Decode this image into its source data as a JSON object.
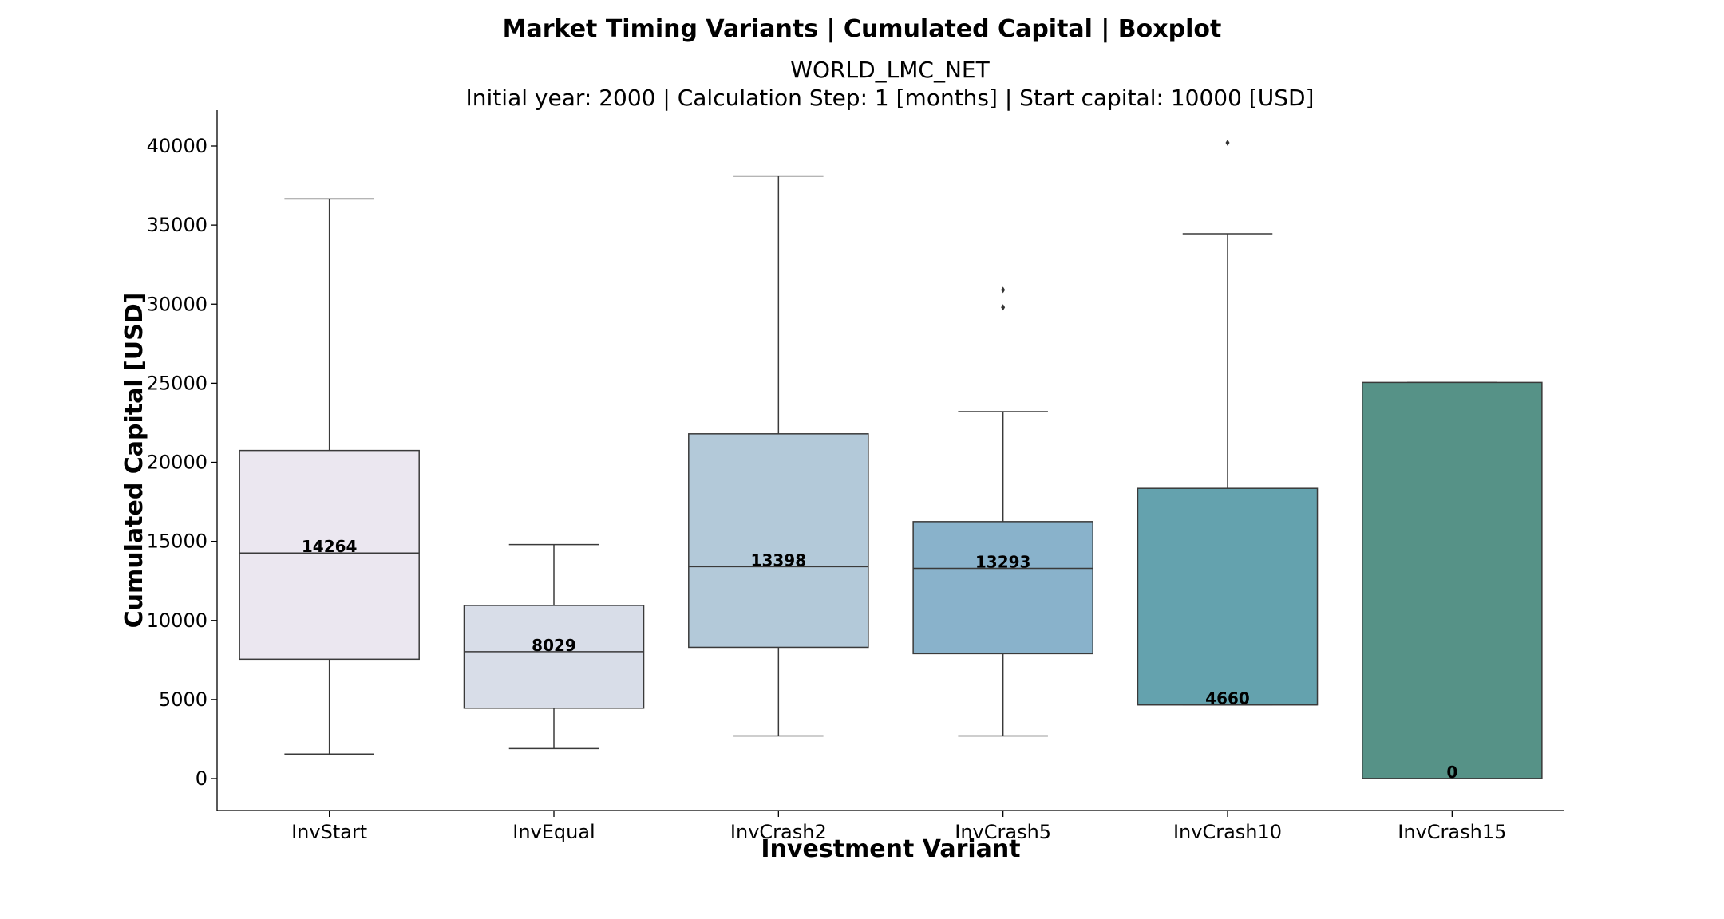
{
  "chart_data": {
    "type": "boxplot",
    "title": "Market Timing Variants | Cumulated Capital | Boxplot",
    "subtitle_line1": "WORLD_LMC_NET",
    "subtitle_line2": "Initial year: 2000 | Calculation Step: 1 [months] | Start capital: 10000 [USD]",
    "xlabel": "Investment Variant",
    "ylabel": "Cumulated Capital [USD]",
    "ylim": [
      -2000,
      42200
    ],
    "yticks": [
      0,
      5000,
      10000,
      15000,
      20000,
      25000,
      30000,
      35000,
      40000
    ],
    "grid": false,
    "categories": [
      "InvStart",
      "InvEqual",
      "InvCrash2",
      "InvCrash5",
      "InvCrash10",
      "InvCrash15"
    ],
    "boxes": [
      {
        "name": "InvStart",
        "whisker_low": 1550,
        "q1": 7550,
        "median": 14264,
        "q3": 20750,
        "whisker_high": 36650,
        "outliers": [],
        "median_label": "14264",
        "color": "#ebe7f0"
      },
      {
        "name": "InvEqual",
        "whisker_low": 1900,
        "q1": 4450,
        "median": 8029,
        "q3": 10950,
        "whisker_high": 14800,
        "outliers": [],
        "median_label": "8029",
        "color": "#d8dde8"
      },
      {
        "name": "InvCrash2",
        "whisker_low": 2700,
        "q1": 8300,
        "median": 13398,
        "q3": 21800,
        "whisker_high": 38100,
        "outliers": [],
        "median_label": "13398",
        "color": "#b3c9d9"
      },
      {
        "name": "InvCrash5",
        "whisker_low": 2700,
        "q1": 7900,
        "median": 13293,
        "q3": 16250,
        "whisker_high": 23200,
        "outliers": [
          29800,
          30900
        ],
        "median_label": "13293",
        "color": "#89b2cb"
      },
      {
        "name": "InvCrash10",
        "whisker_low": 4660,
        "q1": 4660,
        "median": 4660,
        "q3": 18350,
        "whisker_high": 34450,
        "outliers": [
          40200
        ],
        "median_label": "4660",
        "color": "#64a2ae"
      },
      {
        "name": "InvCrash15",
        "whisker_low": 0,
        "q1": 0,
        "median": 0,
        "q3": 25050,
        "whisker_high": 25050,
        "outliers": [],
        "median_label": "0",
        "color": "#569287"
      }
    ]
  }
}
